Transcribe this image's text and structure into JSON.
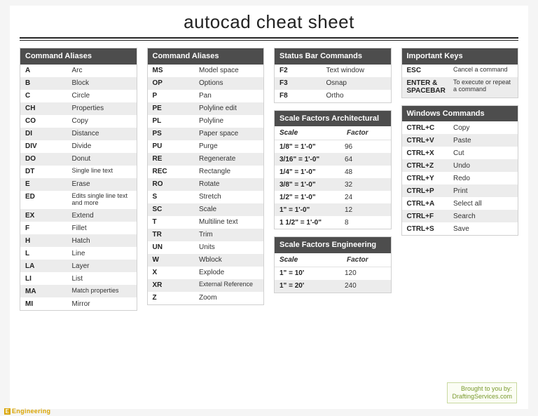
{
  "title": "autocad cheat sheet",
  "colors": {
    "page_bg": "#ffffff",
    "body_bg": "#f5f5f5",
    "header_bg": "#4d4d4d",
    "header_fg": "#ffffff",
    "row_alt": "#ececec",
    "border": "#d0d0d0",
    "rule": "#222222",
    "credit_fg": "#7a9a2e",
    "eng_fg": "#d9a400"
  },
  "typography": {
    "title_fontsize": 26,
    "header_fontsize": 11,
    "row_fontsize": 10,
    "small_fontsize": 9
  },
  "aliases1": {
    "title": "Command Aliases",
    "rows": [
      {
        "k": "A",
        "v": "Arc"
      },
      {
        "k": "B",
        "v": "Block"
      },
      {
        "k": "C",
        "v": "Circle"
      },
      {
        "k": "CH",
        "v": "Properties"
      },
      {
        "k": "CO",
        "v": "Copy"
      },
      {
        "k": "DI",
        "v": "Distance"
      },
      {
        "k": "DIV",
        "v": "Divide"
      },
      {
        "k": "DO",
        "v": "Donut"
      },
      {
        "k": "DT",
        "v": "Single line text",
        "small": true
      },
      {
        "k": "E",
        "v": "Erase"
      },
      {
        "k": "ED",
        "v": "Edits single line text and more",
        "small": true
      },
      {
        "k": "EX",
        "v": "Extend"
      },
      {
        "k": "F",
        "v": "Fillet"
      },
      {
        "k": "H",
        "v": "Hatch"
      },
      {
        "k": "L",
        "v": "Line"
      },
      {
        "k": "LA",
        "v": "Layer"
      },
      {
        "k": "LI",
        "v": "List"
      },
      {
        "k": "MA",
        "v": "Match properties",
        "small": true
      },
      {
        "k": "MI",
        "v": "Mirror"
      }
    ]
  },
  "aliases2": {
    "title": "Command Aliases",
    "rows": [
      {
        "k": "MS",
        "v": "Model space"
      },
      {
        "k": "OP",
        "v": "Options"
      },
      {
        "k": "P",
        "v": "Pan"
      },
      {
        "k": "PE",
        "v": "Polyline edit"
      },
      {
        "k": "PL",
        "v": "Polyline"
      },
      {
        "k": "PS",
        "v": "Paper space"
      },
      {
        "k": "PU",
        "v": "Purge"
      },
      {
        "k": "RE",
        "v": "Regenerate"
      },
      {
        "k": "REC",
        "v": "Rectangle"
      },
      {
        "k": "RO",
        "v": "Rotate"
      },
      {
        "k": "S",
        "v": "Stretch"
      },
      {
        "k": "SC",
        "v": "Scale"
      },
      {
        "k": "T",
        "v": "Multiline text"
      },
      {
        "k": "TR",
        "v": "Trim"
      },
      {
        "k": "UN",
        "v": "Units"
      },
      {
        "k": "W",
        "v": "Wblock"
      },
      {
        "k": "X",
        "v": "Explode"
      },
      {
        "k": "XR",
        "v": "External Reference",
        "small": true
      },
      {
        "k": "Z",
        "v": "Zoom"
      }
    ]
  },
  "statusbar": {
    "title": "Status Bar Commands",
    "rows": [
      {
        "k": "F2",
        "v": "Text window"
      },
      {
        "k": "F3",
        "v": "Osnap"
      },
      {
        "k": "F8",
        "v": "Ortho"
      }
    ]
  },
  "scale_arch": {
    "title": "Scale Factors Architectural",
    "sub_k": "Scale",
    "sub_v": "Factor",
    "rows": [
      {
        "k": "1/8\" = 1'-0\"",
        "v": "96"
      },
      {
        "k": "3/16\" = 1'-0\"",
        "v": "64"
      },
      {
        "k": "1/4\" = 1'-0\"",
        "v": "48"
      },
      {
        "k": "3/8\" = 1'-0\"",
        "v": "32"
      },
      {
        "k": "1/2\" = 1'-0\"",
        "v": "24"
      },
      {
        "k": "1\" = 1'-0\"",
        "v": "12"
      },
      {
        "k": "1 1/2\" = 1'-0\"",
        "v": "8"
      }
    ]
  },
  "scale_eng": {
    "title": "Scale Factors Engineering",
    "sub_k": "Scale",
    "sub_v": "Factor",
    "rows": [
      {
        "k": "1\" = 10'",
        "v": "120"
      },
      {
        "k": "1\" = 20'",
        "v": "240"
      }
    ]
  },
  "important": {
    "title": "Important Keys",
    "rows": [
      {
        "k": "ESC",
        "v": "Cancel a command",
        "small": true
      },
      {
        "k": "ENTER & SPACEBAR",
        "v": "To execute or repeat a command",
        "small": true
      }
    ]
  },
  "windows": {
    "title": "Windows Commands",
    "rows": [
      {
        "k": "CTRL+C",
        "v": "Copy"
      },
      {
        "k": "CTRL+V",
        "v": "Paste"
      },
      {
        "k": "CTRL+X",
        "v": "Cut"
      },
      {
        "k": "CTRL+Z",
        "v": "Undo"
      },
      {
        "k": "CTRL+Y",
        "v": "Redo"
      },
      {
        "k": "CTRL+P",
        "v": "Print"
      },
      {
        "k": "CTRL+A",
        "v": "Select all"
      },
      {
        "k": "CTRL+F",
        "v": "Search"
      },
      {
        "k": "CTRL+S",
        "v": "Save"
      }
    ]
  },
  "credit": {
    "line1": "Brought to you by:",
    "line2": "DraftingServices.com"
  },
  "eng_badge": {
    "icon": "E",
    "text": "Engineering"
  }
}
